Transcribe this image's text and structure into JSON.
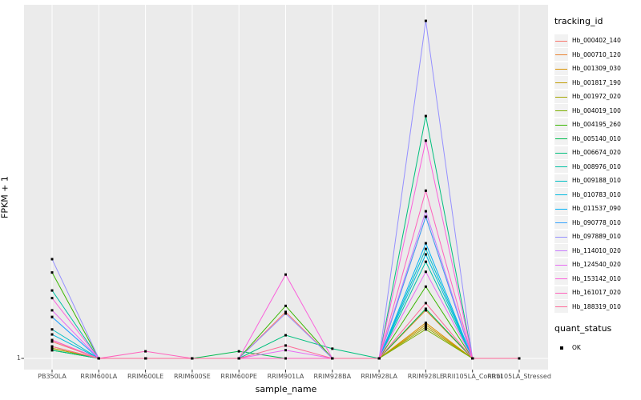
{
  "figure": {
    "y_axis_title": "FPKM + 1",
    "x_axis_title": "sample_name",
    "y_tick_label": "1",
    "legend": {
      "tracking_title": "tracking_id",
      "quant_title": "quant_status",
      "quant_ok_label": "OK"
    },
    "colors": {
      "panel_bg": "#ebebeb",
      "grid": "#ffffff",
      "tick": "#333333",
      "tick_text": "#4d4d4d",
      "point": "#000000",
      "legend_key_bg": "#f2f2f2"
    }
  },
  "chart_data": {
    "type": "line",
    "title": "",
    "xlabel": "sample_name",
    "ylabel": "FPKM + 1",
    "y_scale": "log10",
    "y_tick_values": [
      1
    ],
    "grid": "on",
    "legend_position": "right",
    "point_marker": "small black square (quant_status OK)",
    "categories": [
      "PB350LA",
      "RRIM600LA",
      "RRIM600LE",
      "RRIM600SE",
      "RRIM600PE",
      "RRIM901LA",
      "RRIM928BA",
      "RRIM928LA",
      "RRIM928LE",
      "RRII105LA_Control",
      "RRII105LA_Stressed"
    ],
    "series": [
      {
        "name": "Hb_000402_140",
        "color": "#F8766D",
        "values": [
          1.45,
          1,
          1,
          1,
          1,
          2.8,
          1,
          1,
          23,
          1,
          1
        ]
      },
      {
        "name": "Hb_000710_120",
        "color": "#EA8331",
        "values": [
          1.3,
          1,
          1,
          1,
          1,
          1,
          1,
          1,
          2.9,
          1,
          1
        ]
      },
      {
        "name": "Hb_001309_030",
        "color": "#D89000",
        "values": [
          1.3,
          1,
          1,
          1,
          1,
          1,
          1,
          1,
          2.2,
          1,
          1
        ]
      },
      {
        "name": "Hb_001817_190",
        "color": "#C09B00",
        "values": [
          1.25,
          1,
          1,
          1,
          1,
          1,
          1,
          1,
          2.1,
          1,
          1
        ]
      },
      {
        "name": "Hb_001972_020",
        "color": "#A3A500",
        "values": [
          1.25,
          1,
          1,
          1,
          1,
          1,
          1,
          1,
          2.0,
          1,
          1
        ]
      },
      {
        "name": "Hb_004019_100",
        "color": "#7CAE00",
        "values": [
          1.2,
          1,
          1,
          1,
          1,
          1,
          1,
          1,
          1.9,
          1,
          1
        ]
      },
      {
        "name": "Hb_004195_260",
        "color": "#39B600",
        "values": [
          6.7,
          1,
          1,
          1,
          1,
          3.2,
          1,
          1,
          4.9,
          1,
          1
        ]
      },
      {
        "name": "Hb_005140_010",
        "color": "#00BB4E",
        "values": [
          1.2,
          1,
          1,
          1,
          1.17,
          1,
          1,
          1,
          3.0,
          1,
          1
        ]
      },
      {
        "name": "Hb_006674_020",
        "color": "#00BF7D",
        "values": [
          1.2,
          1,
          1,
          1,
          1,
          1.67,
          1.24,
          1,
          214,
          1,
          1
        ]
      },
      {
        "name": "Hb_008976_010",
        "color": "#00C1A3",
        "values": [
          4.5,
          1,
          1,
          1,
          1,
          1,
          1,
          1,
          8.5,
          1,
          1
        ]
      },
      {
        "name": "Hb_009188_010",
        "color": "#00BFC4",
        "values": [
          1.9,
          1,
          1,
          1,
          1,
          1,
          1,
          1,
          11.3,
          1,
          1
        ]
      },
      {
        "name": "Hb_010783_010",
        "color": "#00BAE0",
        "values": [
          1.7,
          1,
          1,
          1,
          1,
          1,
          1,
          1,
          10,
          1,
          1
        ]
      },
      {
        "name": "Hb_011537_090",
        "color": "#00B0F6",
        "values": [
          2.5,
          1,
          1,
          1,
          1,
          1,
          1,
          1,
          12.8,
          1,
          1
        ]
      },
      {
        "name": "Hb_090778_010",
        "color": "#35A2FF",
        "values": [
          2.5,
          1,
          1,
          1,
          1,
          1,
          1,
          1,
          23,
          1,
          1
        ]
      },
      {
        "name": "Hb_097889_010",
        "color": "#9590FF",
        "values": [
          9.0,
          1,
          1,
          1,
          1,
          2.7,
          1,
          1,
          1760,
          1,
          1
        ]
      },
      {
        "name": "Hb_114010_020",
        "color": "#C77CFF",
        "values": [
          1.5,
          1,
          1,
          1,
          1,
          1,
          1,
          1,
          26,
          1,
          1
        ]
      },
      {
        "name": "Hb_124540_020",
        "color": "#E76BF3",
        "values": [
          2.9,
          1,
          1,
          1,
          1,
          1.2,
          1,
          1,
          6.8,
          1,
          1
        ]
      },
      {
        "name": "Hb_153142_010",
        "color": "#FA62DB",
        "values": [
          3.8,
          1,
          1,
          1,
          1,
          6.4,
          1,
          1,
          124,
          1,
          1
        ]
      },
      {
        "name": "Hb_161017_020",
        "color": "#FF62BC",
        "values": [
          1.5,
          1,
          1.17,
          1,
          1,
          1,
          1,
          1,
          41,
          1,
          1
        ]
      },
      {
        "name": "Hb_188319_010",
        "color": "#FF6A98",
        "values": [
          1.3,
          1,
          1,
          1,
          1,
          1.33,
          1,
          1,
          3.4,
          1,
          1
        ]
      }
    ],
    "quant_status": "OK"
  }
}
